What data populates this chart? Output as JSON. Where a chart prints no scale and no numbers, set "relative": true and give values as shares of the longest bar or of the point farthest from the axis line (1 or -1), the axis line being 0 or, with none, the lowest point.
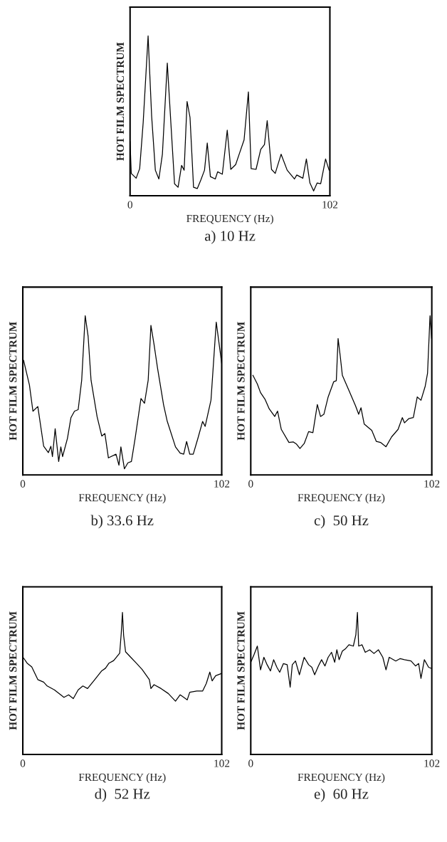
{
  "chart_data": [
    {
      "type": "line",
      "relative": true,
      "title": "a) 10 Hz",
      "xlabel": "FREQUENCY (Hz)",
      "ylabel": "HOT FILM SPECTRUM",
      "xlim": [
        0,
        102
      ],
      "xticks": [
        0,
        102
      ],
      "tick_labels": "x",
      "series": [
        {
          "color": "#000000",
          "x": [
            0,
            0.6,
            3.1,
            4.9,
            6.7,
            9.2,
            11.0,
            12.9,
            14.7,
            16.5,
            19.0,
            20.8,
            22.7,
            24.5,
            26.3,
            27.6,
            29.1,
            30.6,
            32.4,
            34.3,
            36.1,
            38.0,
            39.4,
            41.0,
            43.5,
            44.7,
            47.1,
            49.6,
            51.4,
            53.9,
            55.7,
            58.2,
            60.4,
            61.8,
            64.3,
            66.7,
            68.6,
            70.0,
            72.2,
            74.1,
            77.1,
            80.2,
            83.9,
            85.1,
            88.2,
            90.0,
            91.8,
            93.7,
            95.5,
            97.3,
            99.8,
            101.6
          ],
          "values": [
            0.34,
            0.14,
            0.11,
            0.17,
            0.46,
            1.0,
            0.5,
            0.16,
            0.105,
            0.26,
            0.83,
            0.46,
            0.075,
            0.053,
            0.19,
            0.16,
            0.59,
            0.49,
            0.053,
            0.045,
            0.098,
            0.16,
            0.33,
            0.12,
            0.105,
            0.15,
            0.135,
            0.41,
            0.165,
            0.195,
            0.26,
            0.35,
            0.65,
            0.17,
            0.165,
            0.29,
            0.32,
            0.47,
            0.165,
            0.14,
            0.26,
            0.16,
            0.105,
            0.13,
            0.11,
            0.23,
            0.08,
            0.03,
            0.08,
            0.075,
            0.23,
            0.16
          ]
        }
      ]
    },
    {
      "type": "line",
      "relative": true,
      "title": "b) 33.6 Hz",
      "xlabel": "FREQUENCY (Hz)",
      "ylabel": "HOT FILM SPECTRUM",
      "xlim": [
        0,
        102
      ],
      "xticks": [
        0,
        102
      ],
      "tick_labels": "x",
      "series": [
        {
          "color": "#000000",
          "x": [
            0.4,
            3.4,
            5.2,
            7.7,
            10.7,
            13.1,
            14.4,
            15.2,
            16.6,
            18.4,
            19.5,
            20.4,
            22.9,
            24.7,
            26.5,
            28.4,
            30.2,
            32.0,
            33.5,
            35.0,
            38.1,
            40.5,
            42.1,
            43.9,
            47.8,
            49.3,
            50.3,
            52.1,
            53.9,
            55.7,
            57.6,
            60.6,
            62.4,
            64.3,
            65.7,
            67.3,
            69.1,
            72.2,
            74.0,
            78.3,
            80.7,
            82.5,
            84.0,
            85.6,
            87.4,
            89.8,
            92.2,
            93.5,
            96.5,
            99.2,
            102.0
          ],
          "values": [
            0.72,
            0.565,
            0.4,
            0.43,
            0.18,
            0.14,
            0.18,
            0.115,
            0.29,
            0.084,
            0.176,
            0.115,
            0.23,
            0.36,
            0.4,
            0.41,
            0.595,
            1.0,
            0.87,
            0.595,
            0.366,
            0.244,
            0.26,
            0.107,
            0.13,
            0.061,
            0.176,
            0.038,
            0.076,
            0.084,
            0.23,
            0.48,
            0.45,
            0.595,
            0.94,
            0.82,
            0.67,
            0.44,
            0.34,
            0.176,
            0.137,
            0.13,
            0.21,
            0.13,
            0.13,
            0.23,
            0.336,
            0.305,
            0.47,
            0.96,
            0.7
          ]
        }
      ]
    },
    {
      "type": "line",
      "relative": true,
      "title": "c)  50 Hz",
      "xlabel": "FREQUENCY (Hz)",
      "ylabel": "HOT FILM SPECTRUM",
      "xlim": [
        0,
        102
      ],
      "xticks": [
        0,
        102
      ],
      "tick_labels": "x",
      "series": [
        {
          "color": "#000000",
          "x": [
            1.2,
            3.7,
            5.5,
            8.0,
            10.4,
            13.5,
            15.1,
            17.2,
            21.5,
            24.0,
            25.8,
            27.7,
            30.1,
            32.6,
            35.0,
            37.5,
            39.3,
            41.2,
            43.6,
            46.7,
            48.2,
            49.2,
            50.4,
            51.6,
            55.3,
            59.0,
            60.8,
            62.1,
            63.9,
            68.2,
            70.7,
            73.1,
            76.2,
            79.3,
            83.0,
            85.4,
            86.6,
            89.1,
            91.6,
            93.8,
            95.9,
            98.3,
            99.6,
            101.0,
            101.9
          ],
          "values": [
            0.626,
            0.571,
            0.517,
            0.476,
            0.415,
            0.367,
            0.401,
            0.286,
            0.204,
            0.207,
            0.193,
            0.166,
            0.197,
            0.272,
            0.265,
            0.442,
            0.367,
            0.381,
            0.49,
            0.585,
            0.592,
            0.857,
            0.748,
            0.626,
            0.531,
            0.435,
            0.381,
            0.422,
            0.32,
            0.279,
            0.211,
            0.204,
            0.177,
            0.238,
            0.286,
            0.36,
            0.327,
            0.354,
            0.36,
            0.49,
            0.469,
            0.558,
            0.639,
            1.0,
            0.857
          ]
        }
      ]
    },
    {
      "type": "line",
      "relative": true,
      "title": "d)  52 Hz",
      "xlabel": "FREQUENCY (Hz)",
      "ylabel": "HOT FILM SPECTRUM",
      "xlim": [
        0,
        102
      ],
      "xticks": [
        0,
        102
      ],
      "tick_labels": "x",
      "series": [
        {
          "color": "#000000",
          "x": [
            0.4,
            2.2,
            4.6,
            7.7,
            10.7,
            12.5,
            16.2,
            21.1,
            23.5,
            25.9,
            28.4,
            30.8,
            33.2,
            36.9,
            40.5,
            42.4,
            44.2,
            46.6,
            49.7,
            50.5,
            51.1,
            51.7,
            52.7,
            55.1,
            58.2,
            61.2,
            64.9,
            65.7,
            67.3,
            70.9,
            74.6,
            78.3,
            80.7,
            84.3,
            85.6,
            89.2,
            92.2,
            94.1,
            95.9,
            97.1,
            98.9,
            102.0
          ],
          "values": [
            0.679,
            0.643,
            0.616,
            0.527,
            0.509,
            0.482,
            0.455,
            0.402,
            0.42,
            0.393,
            0.455,
            0.482,
            0.464,
            0.527,
            0.589,
            0.607,
            0.643,
            0.661,
            0.714,
            0.857,
            1.0,
            0.839,
            0.723,
            0.688,
            0.643,
            0.598,
            0.527,
            0.464,
            0.491,
            0.464,
            0.429,
            0.375,
            0.42,
            0.384,
            0.438,
            0.446,
            0.446,
            0.5,
            0.58,
            0.518,
            0.554,
            0.571
          ]
        }
      ]
    },
    {
      "type": "line",
      "relative": true,
      "title": "e)  60 Hz",
      "xlabel": "FREQUENCY (Hz)",
      "ylabel": "HOT FILM SPECTRUM",
      "xlim": [
        0,
        102
      ],
      "xticks": [
        0,
        102
      ],
      "tick_labels": "x",
      "series": [
        {
          "color": "#000000",
          "x": [
            0,
            1.8,
            3.7,
            5.5,
            7.4,
            9.2,
            11.1,
            12.9,
            14.7,
            16.3,
            18.4,
            20.5,
            22.2,
            23.4,
            25.2,
            27.4,
            30.1,
            32.6,
            34.4,
            36.0,
            38.1,
            39.9,
            41.8,
            43.6,
            45.5,
            47.3,
            48.5,
            49.8,
            51.6,
            53.5,
            55.3,
            57.8,
            59.2,
            60.1,
            60.8,
            62.7,
            64.5,
            67.0,
            69.4,
            71.9,
            74.4,
            76.2,
            78.0,
            81.7,
            84.2,
            86.6,
            90.3,
            92.8,
            94.6,
            95.9,
            97.8,
            100.2,
            101.9
          ],
          "values": [
            0.649,
            0.702,
            0.763,
            0.596,
            0.684,
            0.632,
            0.588,
            0.667,
            0.614,
            0.579,
            0.64,
            0.632,
            0.474,
            0.632,
            0.658,
            0.561,
            0.684,
            0.632,
            0.614,
            0.561,
            0.623,
            0.667,
            0.623,
            0.684,
            0.719,
            0.649,
            0.737,
            0.667,
            0.728,
            0.746,
            0.772,
            0.763,
            0.842,
            1.0,
            0.763,
            0.772,
            0.719,
            0.737,
            0.711,
            0.737,
            0.684,
            0.596,
            0.684,
            0.658,
            0.675,
            0.667,
            0.658,
            0.623,
            0.64,
            0.535,
            0.667,
            0.614,
            0.605
          ]
        }
      ]
    }
  ]
}
